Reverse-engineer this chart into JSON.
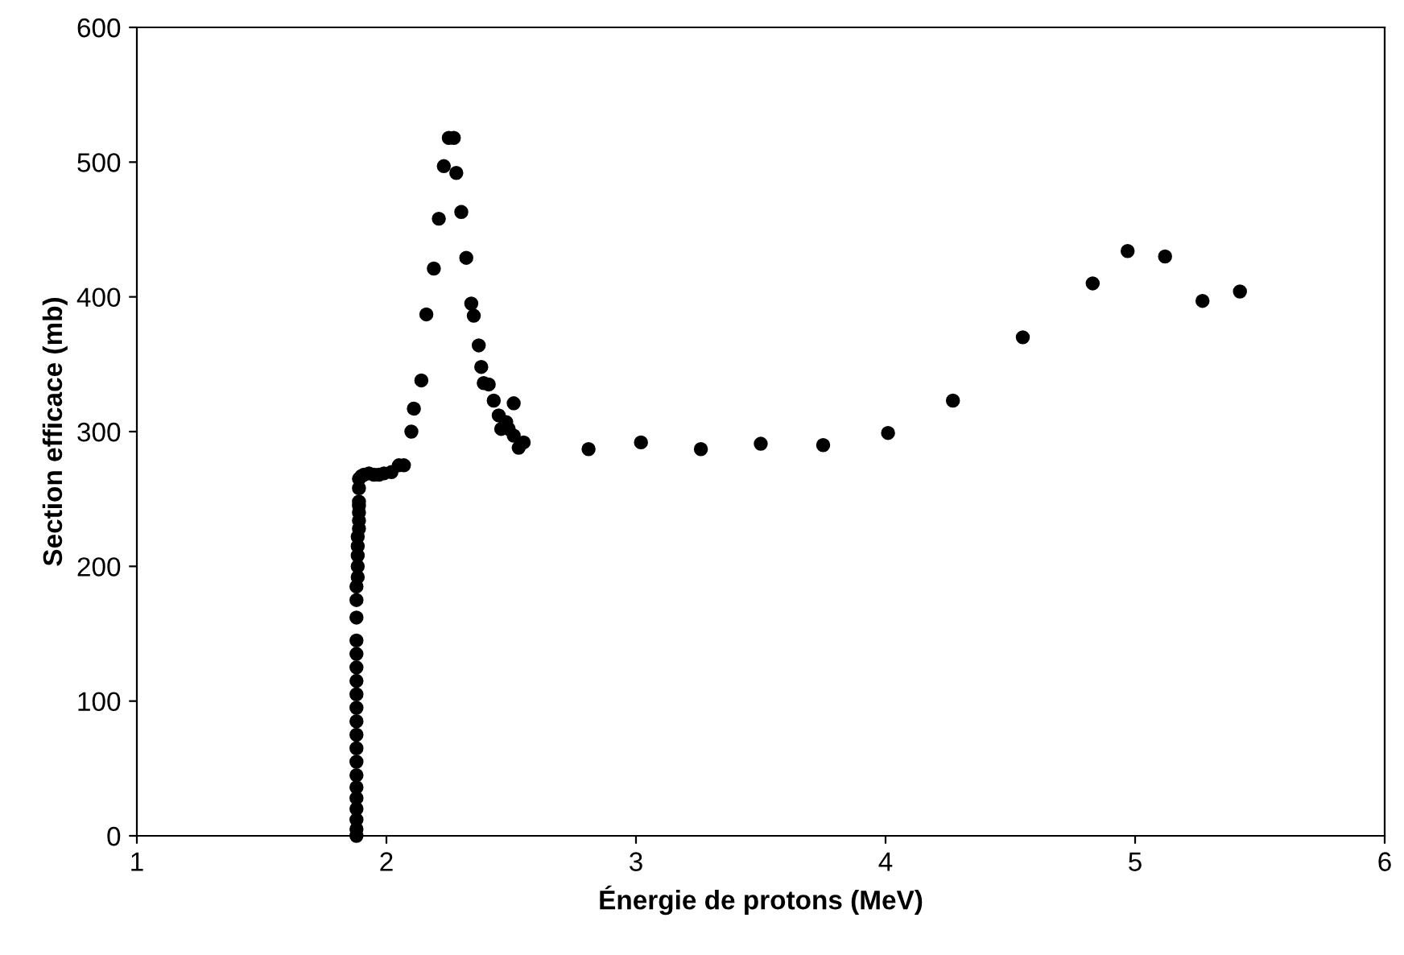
{
  "chart_data": {
    "type": "scatter",
    "xlabel": "Énergie de protons (MeV)",
    "ylabel": "Section efficace (mb)",
    "xlim": [
      1,
      6
    ],
    "xticks": [
      1,
      2,
      3,
      4,
      5,
      6
    ],
    "ylim": [
      0,
      600
    ],
    "yticks": [
      0,
      100,
      200,
      300,
      400,
      500,
      600
    ],
    "grid": false,
    "marker": "circle",
    "series": [
      {
        "color": "#000000",
        "x": [
          1.88,
          1.88,
          1.88,
          1.88,
          1.88,
          1.88,
          1.88,
          1.88,
          1.88,
          1.88,
          1.88,
          1.88,
          1.88,
          1.88,
          1.88,
          1.88,
          1.88,
          1.88,
          1.88,
          1.88,
          1.885,
          1.885,
          1.885,
          1.885,
          1.885,
          1.89,
          1.89,
          1.89,
          1.89,
          1.89,
          1.89,
          1.89,
          1.9,
          1.91,
          1.93,
          1.95,
          1.97,
          1.99,
          2.02,
          2.05,
          2.07,
          2.1,
          2.11,
          2.14,
          2.16,
          2.19,
          2.21,
          2.23,
          2.25,
          2.27,
          2.28,
          2.3,
          2.32,
          2.34,
          2.35,
          2.37,
          2.38,
          2.39,
          2.41,
          2.43,
          2.45,
          2.46,
          2.48,
          2.49,
          2.51,
          2.51,
          2.53,
          2.55,
          2.81,
          3.02,
          3.26,
          3.5,
          3.75,
          4.01,
          4.27,
          4.55,
          4.83,
          4.97,
          5.12,
          5.27,
          5.42
        ],
        "values": [
          0,
          5,
          12,
          20,
          28,
          36,
          45,
          55,
          65,
          75,
          85,
          95,
          105,
          115,
          125,
          135,
          145,
          162,
          175,
          185,
          192,
          200,
          208,
          215,
          222,
          228,
          234,
          240,
          245,
          248,
          258,
          265,
          267,
          268,
          269,
          268,
          268,
          269,
          270,
          275,
          275,
          300,
          317,
          338,
          387,
          421,
          458,
          497,
          518,
          518,
          492,
          463,
          429,
          395,
          386,
          364,
          348,
          336,
          335,
          323,
          312,
          302,
          307,
          302,
          297,
          321,
          288,
          292,
          287,
          292,
          287,
          291,
          290,
          299,
          323,
          370,
          410,
          434,
          430,
          397,
          404
        ]
      }
    ]
  }
}
